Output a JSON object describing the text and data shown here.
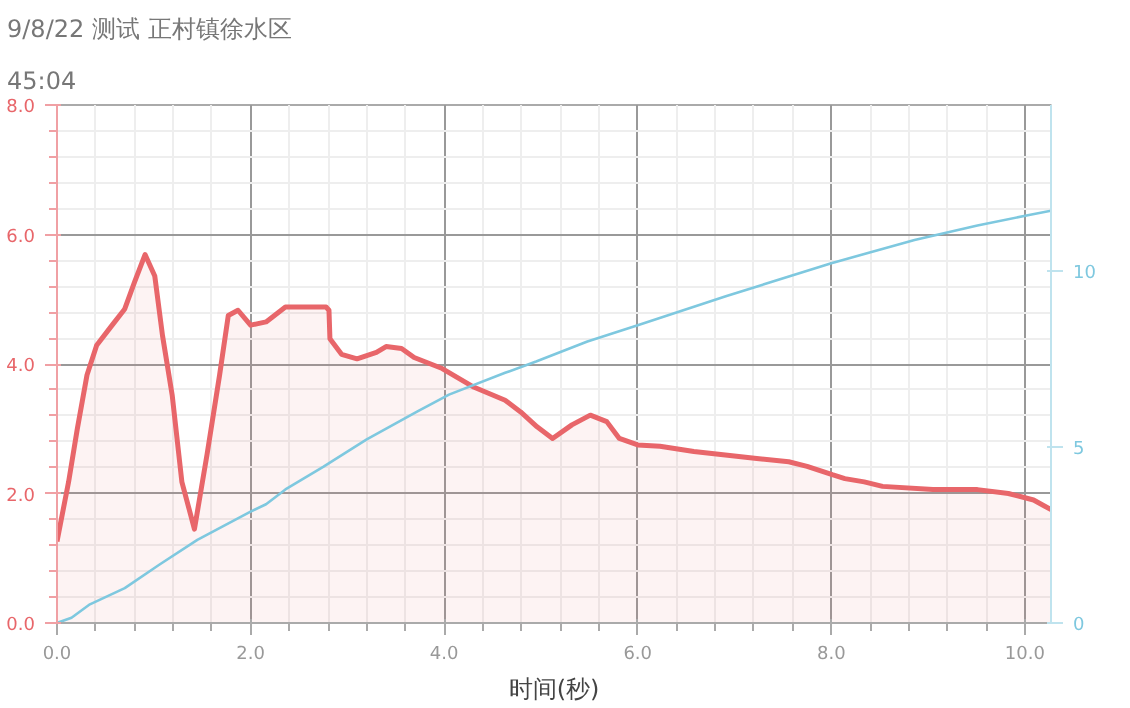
{
  "chart_data": {
    "type": "line",
    "title": "9/8/22 测试 正村镇徐水区",
    "subtitle": "45:04",
    "xlabel": "时间(秒)",
    "xlim": [
      0,
      10.27
    ],
    "xticks": [
      {
        "value": 0,
        "label": "0.0"
      },
      {
        "value": 2,
        "label": "2.0"
      },
      {
        "value": 4,
        "label": "4.0"
      },
      {
        "value": 6,
        "label": "6.0"
      },
      {
        "value": 8,
        "label": "8.0"
      },
      {
        "value": 10,
        "label": "10.0"
      }
    ],
    "ylim": [
      0,
      8
    ],
    "yticks": [
      {
        "value": 0,
        "label": "0.0"
      },
      {
        "value": 2,
        "label": "2.0"
      },
      {
        "value": 4,
        "label": "4.0"
      },
      {
        "value": 6,
        "label": "6.0"
      },
      {
        "value": 8,
        "label": "8.0"
      }
    ],
    "y2lim": [
      0,
      14.7
    ],
    "y2ticks": [
      0,
      5,
      10
    ],
    "grid": true,
    "series": [
      {
        "type": "area",
        "color": "#e8666a",
        "x": [
          0,
          0.12,
          0.21,
          0.31,
          0.41,
          0.57,
          0.7,
          0.8,
          0.91,
          1.01,
          1.09,
          1.19,
          1.29,
          1.42,
          1.55,
          1.68,
          1.77,
          1.87,
          2.0,
          2.16,
          2.36,
          2.78,
          2.81,
          2.82,
          2.94,
          3.1,
          3.3,
          3.4,
          3.56,
          3.69,
          3.98,
          4.31,
          4.63,
          4.79,
          4.96,
          5.12,
          5.32,
          5.51,
          5.68,
          5.81,
          6.0,
          6.23,
          6.58,
          7.23,
          7.56,
          7.75,
          8.01,
          8.14,
          8.34,
          8.53,
          9.05,
          9.51,
          9.83,
          10.09,
          10.27
        ],
        "values": [
          1.26,
          2.18,
          3.0,
          3.83,
          4.29,
          4.6,
          4.85,
          5.26,
          5.69,
          5.36,
          4.44,
          3.52,
          2.18,
          1.45,
          2.6,
          3.83,
          4.75,
          4.83,
          4.6,
          4.65,
          4.88,
          4.88,
          4.83,
          4.39,
          4.15,
          4.08,
          4.18,
          4.27,
          4.24,
          4.1,
          3.93,
          3.64,
          3.44,
          3.26,
          3.03,
          2.85,
          3.06,
          3.21,
          3.11,
          2.85,
          2.75,
          2.73,
          2.65,
          2.54,
          2.49,
          2.42,
          2.29,
          2.23,
          2.18,
          2.11,
          2.06,
          2.06,
          2.0,
          1.9,
          1.75
        ]
      },
      {
        "axis": "y2",
        "color": "#7ec8df",
        "x": [
          0,
          0.15,
          0.34,
          0.7,
          1.06,
          1.45,
          2.0,
          2.16,
          2.36,
          2.75,
          3.2,
          3.72,
          4.05,
          4.63,
          4.95,
          5.48,
          6.0,
          6.91,
          8.0,
          8.86,
          9.51,
          10.03,
          10.27
        ],
        "values": [
          0,
          0.15,
          0.53,
          0.99,
          1.66,
          2.36,
          3.16,
          3.37,
          3.79,
          4.43,
          5.21,
          6.0,
          6.48,
          7.1,
          7.42,
          7.99,
          8.45,
          9.27,
          10.21,
          10.87,
          11.28,
          11.57,
          11.7
        ]
      }
    ]
  }
}
